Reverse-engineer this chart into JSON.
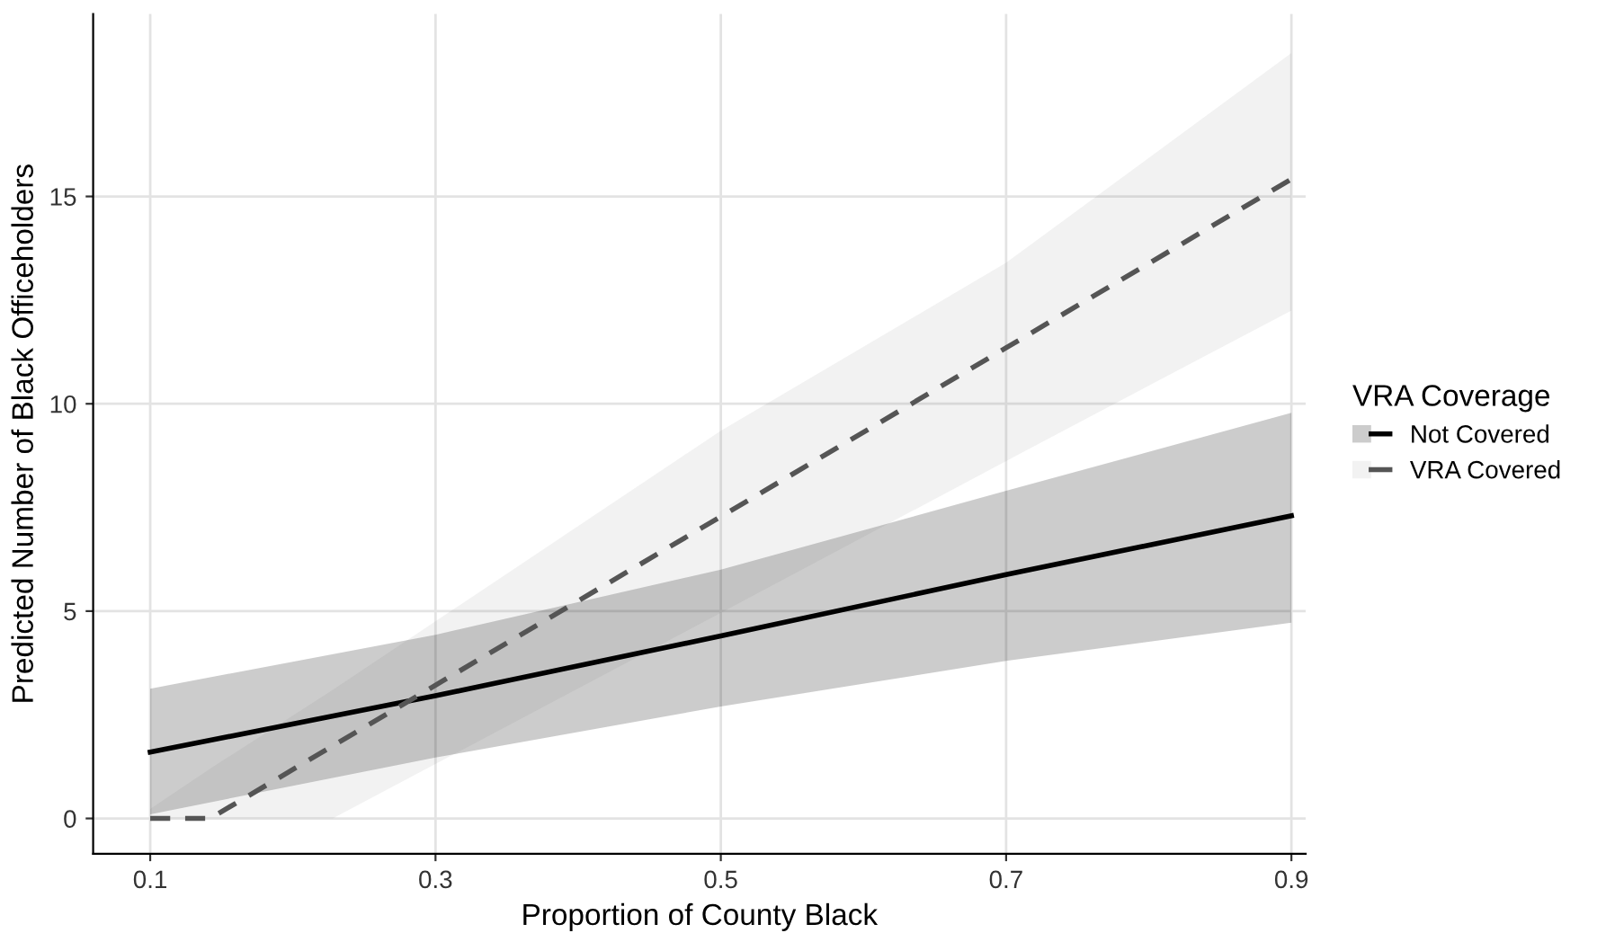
{
  "chart_data": {
    "type": "line",
    "xlabel": "Proportion of County Black",
    "ylabel": "Predicted Number of Black Officeholders",
    "legend_title": "VRA Coverage",
    "legend": "right",
    "grid": true,
    "xlim": [
      0.06,
      0.91
    ],
    "xticks": [
      0.1,
      0.3,
      0.5,
      0.7,
      0.9
    ],
    "ylim": [
      -0.85,
      19.4
    ],
    "yticks": [
      0,
      5,
      10,
      15
    ],
    "series": [
      {
        "name": "Not Covered",
        "color": "#000000",
        "line_style": "solid",
        "x": [
          0.1,
          0.3,
          0.5,
          0.7,
          0.9
        ],
        "values": [
          1.6,
          2.96,
          4.4,
          5.88,
          7.3
        ],
        "lower": [
          0.1,
          1.47,
          2.7,
          3.8,
          4.72
        ],
        "upper": [
          3.13,
          4.43,
          6.0,
          7.9,
          9.78
        ]
      },
      {
        "name": "VRA Covered",
        "color": "#555555",
        "line_style": "dashed",
        "x": [
          0.1,
          0.142,
          0.228,
          0.5,
          0.7,
          0.9
        ],
        "values": [
          0,
          0,
          1.75,
          7.28,
          11.35,
          15.42
        ],
        "lower": [
          0,
          0,
          0,
          4.96,
          8.62,
          12.25
        ],
        "upper": [
          0.23,
          1.2,
          3.1,
          9.35,
          13.4,
          18.46
        ]
      }
    ]
  }
}
